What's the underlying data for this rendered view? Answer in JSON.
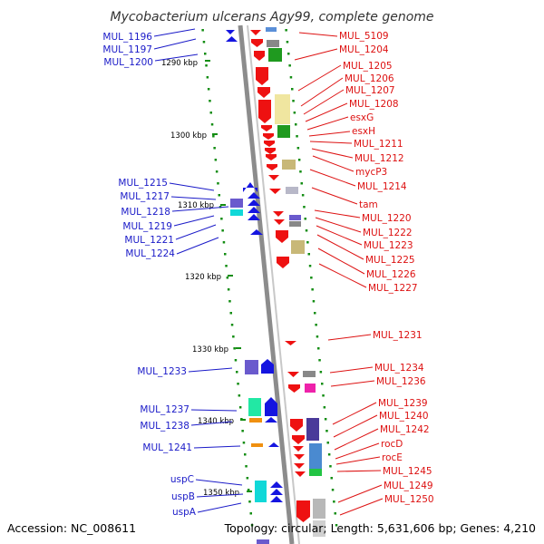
{
  "title": "Mycobacterium ulcerans Agy99, complete genome",
  "footer": {
    "accession": "Accession: NC_008611",
    "topology": "Topology: circular; Length: 5,631,606 bp; Genes: 4,210"
  },
  "colors": {
    "left_label": "#1a1ac8",
    "right_label": "#dd1111",
    "backbone": "#8c8c8c",
    "tick": "#138d13"
  },
  "backbone_ticks": [
    "1290 kbp",
    "1300 kbp",
    "1310 kbp",
    "1320 kbp",
    "1330 kbp",
    "1340 kbp",
    "1350 kbp"
  ],
  "left_labels": [
    "MUL_1196",
    "MUL_1197",
    "MUL_1200",
    "MUL_1215",
    "MUL_1217",
    "MUL_1218",
    "MUL_1219",
    "MUL_1221",
    "MUL_1224",
    "MUL_1233",
    "MUL_1237",
    "MUL_1238",
    "MUL_1241",
    "uspC",
    "uspB",
    "uspA"
  ],
  "right_labels": [
    "MUL_5109",
    "MUL_1204",
    "MUL_1205",
    "MUL_1206",
    "MUL_1207",
    "MUL_1208",
    "esxG",
    "esxH",
    "MUL_1211",
    "MUL_1212",
    "mycP3",
    "MUL_1214",
    "tam",
    "MUL_1220",
    "MUL_1222",
    "MUL_1223",
    "MUL_1225",
    "MUL_1226",
    "MUL_1227",
    "MUL_1231",
    "MUL_1234",
    "MUL_1236",
    "MUL_1239",
    "MUL_1240",
    "MUL_1242",
    "rocD",
    "rocE",
    "MUL_1245",
    "MUL_1249",
    "MUL_1250"
  ]
}
